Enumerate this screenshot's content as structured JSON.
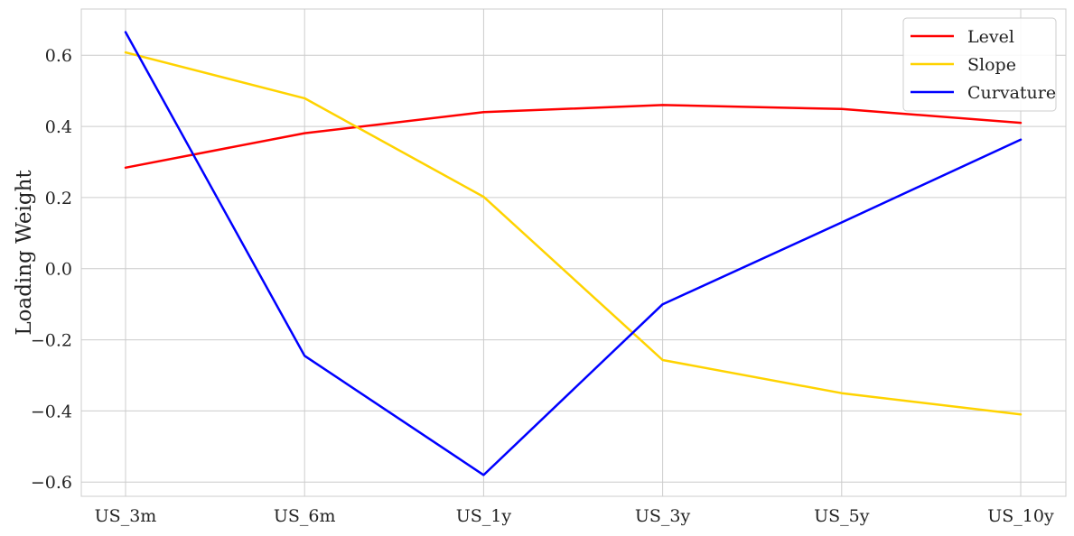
{
  "chart_data": {
    "type": "line",
    "title": "",
    "xlabel": "",
    "ylabel": "Loading Weight",
    "categories": [
      "US_3m",
      "US_6m",
      "US_1y",
      "US_3y",
      "US_5y",
      "US_10y"
    ],
    "ylim": [
      -0.64,
      0.73
    ],
    "yticks": [
      -0.6,
      -0.4,
      -0.2,
      0.0,
      0.2,
      0.4,
      0.6
    ],
    "ytick_labels": [
      "−0.6",
      "−0.4",
      "−0.2",
      "0.0",
      "0.2",
      "0.4",
      "0.6"
    ],
    "grid": true,
    "legend_position": "top-right",
    "series": [
      {
        "name": "Level",
        "color": "#ff0000",
        "values": [
          0.284,
          0.381,
          0.44,
          0.46,
          0.449,
          0.41
        ]
      },
      {
        "name": "Slope",
        "color": "#ffd300",
        "values": [
          0.608,
          0.479,
          0.202,
          -0.257,
          -0.35,
          -0.41
        ]
      },
      {
        "name": "Curvature",
        "color": "#0000ff",
        "values": [
          0.665,
          -0.245,
          -0.58,
          -0.1,
          0.13,
          0.363
        ]
      }
    ]
  }
}
